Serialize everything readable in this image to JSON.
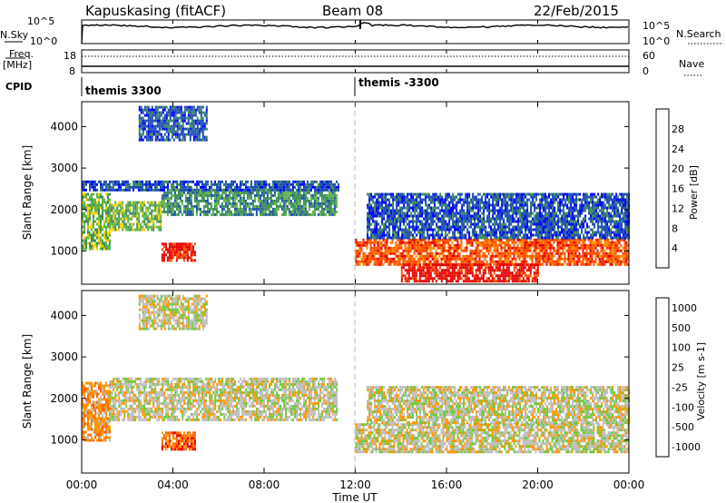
{
  "header": {
    "station": "Kapuskasing (fitACF)",
    "beam": "Beam 08",
    "date": "22/Feb/2015"
  },
  "noise_panel": {
    "left_label": "N.Sky",
    "left_ticks": [
      "10^5",
      "10^0"
    ],
    "right_ticks": [
      "10^5",
      "10^0"
    ],
    "right_label": "N.Search"
  },
  "freq_panel": {
    "left_label_1": "Freq.",
    "left_label_2": "[MHz]",
    "left_ticks": [
      "18",
      "8"
    ],
    "right_ticks": [
      "60",
      "0"
    ],
    "right_label": "Nave"
  },
  "cpid": {
    "label": "CPID",
    "segments": [
      {
        "name": "themis 3300",
        "start_hour": 0
      },
      {
        "name": "themis -3300",
        "start_hour": 12
      }
    ]
  },
  "chart_data": [
    {
      "type": "heatmap",
      "quantity": "Power",
      "xlabel": "Time UT",
      "ylabel": "Slant Range [km]",
      "xlim": [
        0,
        24
      ],
      "ylim": [
        200,
        4600
      ],
      "y_ticks": [
        1000,
        2000,
        3000,
        4000
      ],
      "colorbar": {
        "label": "Power [dB]",
        "ticks": [
          4,
          8,
          12,
          16,
          20,
          24,
          28
        ],
        "colors": [
          "#0000ff",
          "#1e4fb4",
          "#3c8c5a",
          "#5fb44b",
          "#ffd200",
          "#ff8c00",
          "#ff5000",
          "#e60000"
        ]
      },
      "regions": [
        {
          "t0": 0.0,
          "t1": 1.2,
          "r0": 1050,
          "r1": 2400,
          "level": 3
        },
        {
          "t0": 1.2,
          "t1": 3.5,
          "r0": 1500,
          "r1": 2200,
          "level": 3
        },
        {
          "t0": 3.5,
          "t1": 11.2,
          "r0": 1900,
          "r1": 2500,
          "level": 2
        },
        {
          "t0": 0.0,
          "t1": 11.3,
          "r0": 2500,
          "r1": 2700,
          "level": 1
        },
        {
          "t0": 3.5,
          "t1": 5.0,
          "r0": 800,
          "r1": 1200,
          "level": 7
        },
        {
          "t0": 12.0,
          "t1": 24.0,
          "r0": 700,
          "r1": 1300,
          "level": 6
        },
        {
          "t0": 14.0,
          "t1": 20.0,
          "r0": 300,
          "r1": 700,
          "level": 7
        },
        {
          "t0": 12.5,
          "t1": 24.0,
          "r0": 1300,
          "r1": 2400,
          "level": 1
        },
        {
          "t0": 2.5,
          "t1": 5.5,
          "r0": 3700,
          "r1": 4500,
          "level": 1
        }
      ]
    },
    {
      "type": "heatmap",
      "quantity": "Velocity",
      "xlabel": "Time UT",
      "ylabel": "Slant Range [km]",
      "xlim": [
        0,
        24
      ],
      "ylim": [
        200,
        4600
      ],
      "x_ticks": [
        "00:00",
        "04:00",
        "08:00",
        "12:00",
        "16:00",
        "20:00",
        "00:00"
      ],
      "y_ticks": [
        1000,
        2000,
        3000,
        4000
      ],
      "colorbar": {
        "label": "Velocity [m s-1]",
        "ticks": [
          "1000",
          "500",
          "100",
          "25",
          "-25",
          "-100",
          "-500",
          "-1000"
        ],
        "colors": [
          "#0000ff",
          "#1e5ab4",
          "#3c8c5a",
          "#6ec83c",
          "#bebebe",
          "#ff9600",
          "#ff6400",
          "#e60000"
        ]
      },
      "regions": [
        {
          "t0": 0.0,
          "t1": 1.2,
          "r0": 1000,
          "r1": 2400,
          "level": 5
        },
        {
          "t0": 1.2,
          "t1": 11.2,
          "r0": 1500,
          "r1": 2500,
          "level": 4
        },
        {
          "t0": 3.5,
          "t1": 5.0,
          "r0": 800,
          "r1": 1200,
          "level": 6
        },
        {
          "t0": 12.0,
          "t1": 24.0,
          "r0": 700,
          "r1": 1400,
          "level": 4
        },
        {
          "t0": 12.5,
          "t1": 24.0,
          "r0": 1400,
          "r1": 2300,
          "level": 4
        },
        {
          "t0": 2.5,
          "t1": 5.5,
          "r0": 3700,
          "r1": 4500,
          "level": 4
        }
      ]
    }
  ]
}
